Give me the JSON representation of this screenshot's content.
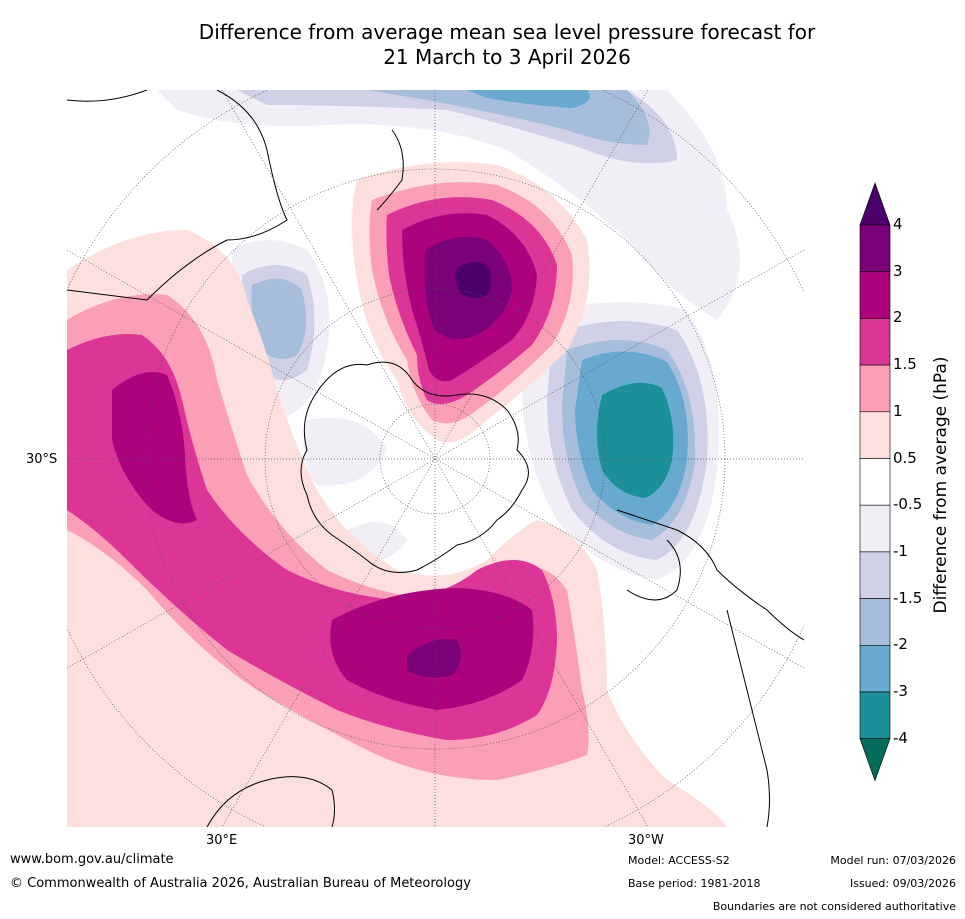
{
  "title": {
    "line1": "Difference from average mean sea level pressure forecast for",
    "line2": "21 March to 3 April 2026"
  },
  "axis_labels": {
    "left": "30°S",
    "bottom_left": "30°E",
    "bottom_right": "30°W"
  },
  "colorbar": {
    "title": "Difference from average (hPa)",
    "ticks": [
      "4",
      "3",
      "2",
      "1.5",
      "1",
      "0.5",
      "-0.5",
      "-1",
      "-1.5",
      "-2",
      "-3",
      "-4"
    ],
    "colors": {
      "above_4": "#4b006b",
      "3_to_4": "#7a0177",
      "2_to_3": "#ae017e",
      "1.5_to_2": "#dd3497",
      "1_to_1.5": "#fa9fb5",
      "0.5_to_1": "#fde0dd",
      "neutral": "#ffffff",
      "-1_to_-0.5": "#f1eef6",
      "-1.5_to_-1": "#d0d1e6",
      "-2_to_-1.5": "#a6bddb",
      "-3_to_-2": "#67a9cf",
      "-4_to_-3": "#1c9099",
      "below_-4": "#016c59"
    }
  },
  "footer": {
    "website": "www.bom.gov.au/climate",
    "copyright": "© Commonwealth of Australia 2026, Australian Bureau of Meteorology",
    "model": "Model: ACCESS-S2",
    "base_period": "Base period: 1981-2018",
    "model_run": "Model run: 07/03/2026",
    "issued": "Issued: 09/03/2026",
    "disclaimer": "Boundaries are not considered authoritative"
  }
}
